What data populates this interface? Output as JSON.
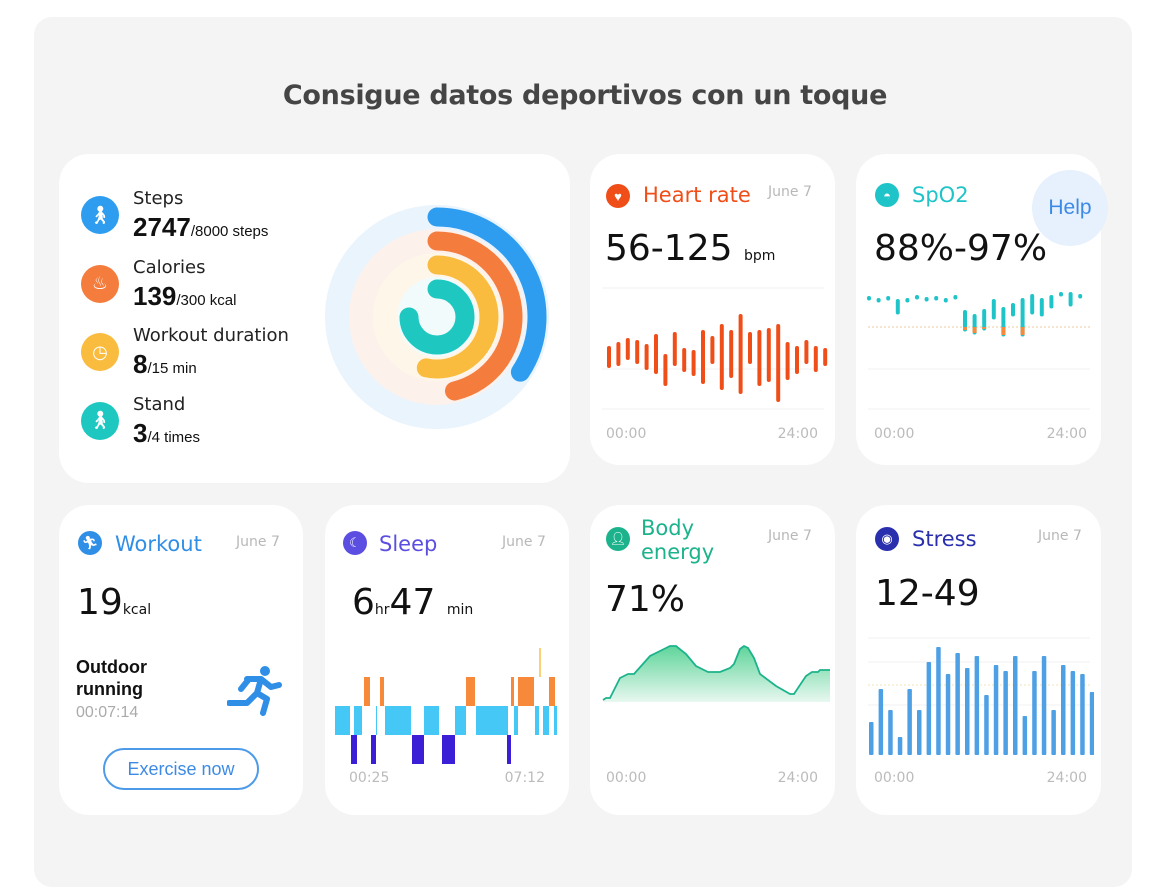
{
  "title": "Consigue datos deportivos con un toque",
  "activity": {
    "rings_bg": "#eaf4fd",
    "items": [
      {
        "label": "Steps",
        "value": "2747",
        "goal": "/8000  steps",
        "progress": 0.343,
        "color": "#2e9df0",
        "icon": "walking-icon"
      },
      {
        "label": "Calories",
        "value": "139",
        "goal": "/300 kcal",
        "progress": 0.463,
        "color": "#f47c3c",
        "icon": "flame-icon"
      },
      {
        "label": "Workout duration",
        "value": "8",
        "goal": "/15  min",
        "progress": 0.533,
        "color": "#f9bc3e",
        "icon": "clock-check-icon"
      },
      {
        "label": "Stand",
        "value": "3",
        "goal": "/4  times",
        "progress": 0.75,
        "color": "#1ec8c0",
        "icon": "standing-icon"
      }
    ]
  },
  "heart": {
    "title": "Heart rate",
    "date": "June 7",
    "value": "56-125",
    "unit": "bpm",
    "x_start": "00:00",
    "x_end": "24:00",
    "color": "#f04e18"
  },
  "spo2": {
    "title": "SpO2",
    "value": "88%-97%",
    "help": "Help",
    "x_start": "00:00",
    "x_end": "24:00",
    "color": "#1ec4c8"
  },
  "workout": {
    "title": "Workout",
    "date": "June 7",
    "value": "19",
    "unit": "kcal",
    "activity": "Outdoor running",
    "duration": "00:07:14",
    "button": "Exercise now",
    "color": "#2f8ee6"
  },
  "sleep": {
    "title": "Sleep",
    "date": "June 7",
    "hours": "6",
    "hr_unit": "hr",
    "minutes": "47",
    "min_unit": "min",
    "x_start": "00:25",
    "x_end": "07:12",
    "color": "#5b4ee0"
  },
  "body": {
    "title": "Body energy",
    "date": "June 7",
    "value": "71%",
    "x_start": "00:00",
    "x_end": "24:00",
    "color": "#1cb38c"
  },
  "stress": {
    "title": "Stress",
    "date": "June 7",
    "value": "12-49",
    "x_start": "00:00",
    "x_end": "24:00",
    "color": "#2a2fae"
  }
}
